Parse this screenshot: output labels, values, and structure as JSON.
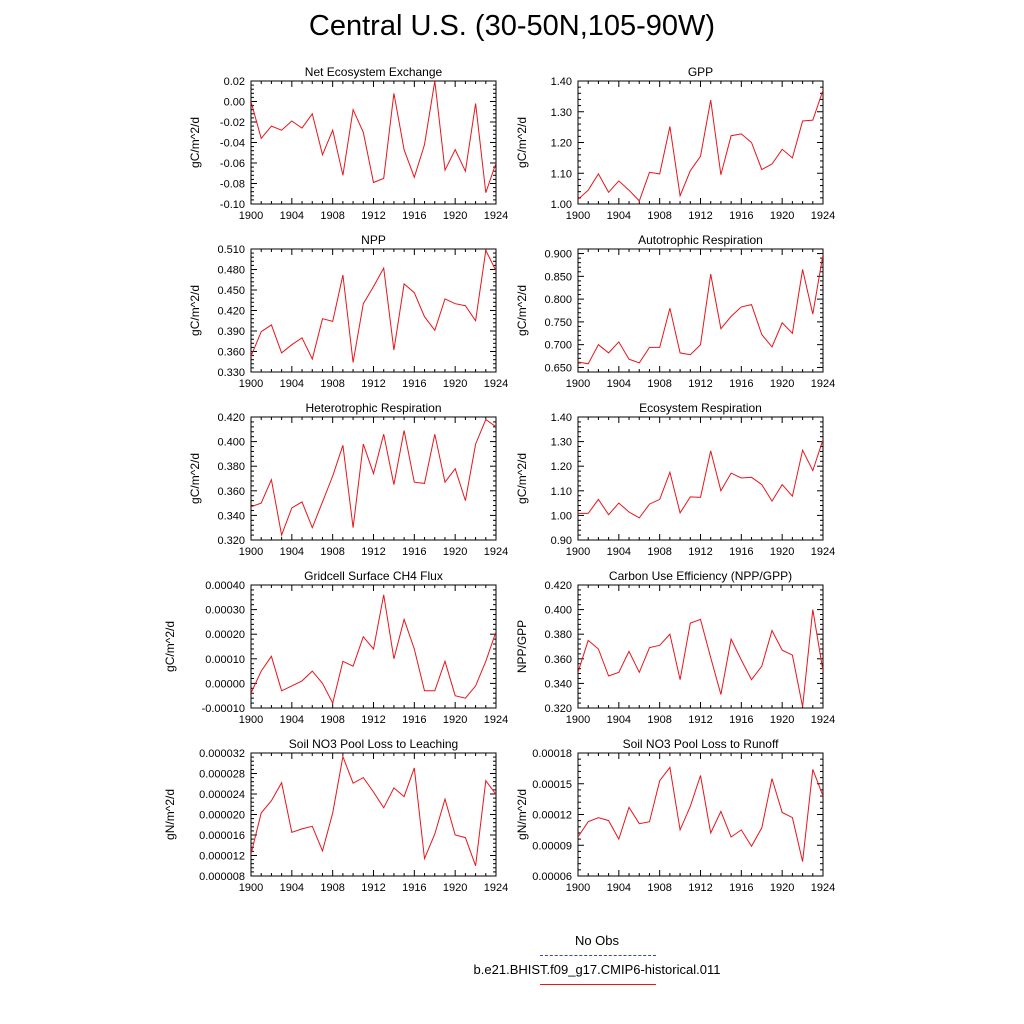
{
  "figure": {
    "title": "Central U.S. (30-50N,105-90W)"
  },
  "colors": {
    "model_line": "#e8151b",
    "obs_line": "#3344cc",
    "axis": "#000000"
  },
  "legend": {
    "obs_label": "No Obs",
    "model_label": "b.e21.BHIST.f09_g17.CMIP6-historical.011"
  },
  "chart_data": [
    {
      "type": "line",
      "title": "Net Ecosystem Exchange",
      "ylabel": "gC/m^2/d",
      "xlim": [
        1900,
        1924
      ],
      "ylim": [
        -0.1,
        0.02
      ],
      "xticks": [
        "1900",
        "1904",
        "1908",
        "1912",
        "1916",
        "1920",
        "1924"
      ],
      "yticks": [
        "-0.10",
        "-0.08",
        "-0.06",
        "-0.04",
        "-0.02",
        "0.00",
        "0.02"
      ],
      "x": [
        1900,
        1901,
        1902,
        1903,
        1904,
        1905,
        1906,
        1907,
        1908,
        1909,
        1910,
        1911,
        1912,
        1913,
        1914,
        1915,
        1916,
        1917,
        1918,
        1919,
        1920,
        1921,
        1922,
        1923,
        1924
      ],
      "values": [
        0.0,
        -0.036,
        -0.024,
        -0.028,
        -0.019,
        -0.026,
        -0.012,
        -0.052,
        -0.028,
        -0.072,
        -0.008,
        -0.03,
        -0.079,
        -0.075,
        0.008,
        -0.047,
        -0.074,
        -0.042,
        0.02,
        -0.067,
        -0.047,
        -0.068,
        -0.002,
        -0.089,
        -0.06
      ]
    },
    {
      "type": "line",
      "title": "GPP",
      "ylabel": "gC/m^2/d",
      "xlim": [
        1900,
        1924
      ],
      "ylim": [
        1.0,
        1.4
      ],
      "xticks": [
        "1900",
        "1904",
        "1908",
        "1912",
        "1916",
        "1920",
        "1924"
      ],
      "yticks": [
        "1.00",
        "1.10",
        "1.20",
        "1.30",
        "1.40"
      ],
      "x": [
        1900,
        1901,
        1902,
        1903,
        1904,
        1905,
        1906,
        1907,
        1908,
        1909,
        1910,
        1911,
        1912,
        1913,
        1914,
        1915,
        1916,
        1917,
        1918,
        1919,
        1920,
        1921,
        1922,
        1923,
        1924
      ],
      "values": [
        1.015,
        1.045,
        1.098,
        1.038,
        1.075,
        1.045,
        1.01,
        1.103,
        1.098,
        1.252,
        1.027,
        1.108,
        1.155,
        1.338,
        1.095,
        1.222,
        1.228,
        1.2,
        1.112,
        1.13,
        1.178,
        1.15,
        1.27,
        1.273,
        1.37
      ]
    },
    {
      "type": "line",
      "title": "NPP",
      "ylabel": "gC/m^2/d",
      "xlim": [
        1900,
        1924
      ],
      "ylim": [
        0.33,
        0.51
      ],
      "xticks": [
        "1900",
        "1904",
        "1908",
        "1912",
        "1916",
        "1920",
        "1924"
      ],
      "yticks": [
        "0.330",
        "0.360",
        "0.390",
        "0.420",
        "0.450",
        "0.480",
        "0.510"
      ],
      "x": [
        1900,
        1901,
        1902,
        1903,
        1904,
        1905,
        1906,
        1907,
        1908,
        1909,
        1910,
        1911,
        1912,
        1913,
        1914,
        1915,
        1916,
        1917,
        1918,
        1919,
        1920,
        1921,
        1922,
        1923,
        1924
      ],
      "values": [
        0.353,
        0.389,
        0.399,
        0.358,
        0.37,
        0.38,
        0.349,
        0.408,
        0.404,
        0.472,
        0.344,
        0.43,
        0.455,
        0.482,
        0.362,
        0.459,
        0.446,
        0.411,
        0.391,
        0.437,
        0.43,
        0.427,
        0.405,
        0.508,
        0.478
      ]
    },
    {
      "type": "line",
      "title": "Autotrophic Respiration",
      "ylabel": "gC/m^2/d",
      "xlim": [
        1900,
        1924
      ],
      "ylim": [
        0.64,
        0.91
      ],
      "xticks": [
        "1900",
        "1904",
        "1908",
        "1912",
        "1916",
        "1920",
        "1924"
      ],
      "yticks": [
        "0.650",
        "0.700",
        "0.750",
        "0.800",
        "0.850",
        "0.900"
      ],
      "x": [
        1900,
        1901,
        1902,
        1903,
        1904,
        1905,
        1906,
        1907,
        1908,
        1909,
        1910,
        1911,
        1912,
        1913,
        1914,
        1915,
        1916,
        1917,
        1918,
        1919,
        1920,
        1921,
        1922,
        1923,
        1924
      ],
      "values": [
        0.662,
        0.658,
        0.7,
        0.682,
        0.706,
        0.668,
        0.66,
        0.694,
        0.694,
        0.78,
        0.682,
        0.678,
        0.7,
        0.855,
        0.735,
        0.762,
        0.783,
        0.788,
        0.722,
        0.695,
        0.748,
        0.725,
        0.865,
        0.767,
        0.898
      ]
    },
    {
      "type": "line",
      "title": "Heterotrophic Respiration",
      "ylabel": "gC/m^2/d",
      "xlim": [
        1900,
        1924
      ],
      "ylim": [
        0.32,
        0.42
      ],
      "xticks": [
        "1900",
        "1904",
        "1908",
        "1912",
        "1916",
        "1920",
        "1924"
      ],
      "yticks": [
        "0.320",
        "0.340",
        "0.360",
        "0.380",
        "0.400",
        "0.420"
      ],
      "x": [
        1900,
        1901,
        1902,
        1903,
        1904,
        1905,
        1906,
        1907,
        1908,
        1909,
        1910,
        1911,
        1912,
        1913,
        1914,
        1915,
        1916,
        1917,
        1918,
        1919,
        1920,
        1921,
        1922,
        1923,
        1924
      ],
      "values": [
        0.347,
        0.35,
        0.369,
        0.324,
        0.346,
        0.351,
        0.33,
        0.351,
        0.372,
        0.397,
        0.33,
        0.398,
        0.374,
        0.406,
        0.365,
        0.409,
        0.367,
        0.366,
        0.406,
        0.367,
        0.378,
        0.352,
        0.398,
        0.418,
        0.412
      ]
    },
    {
      "type": "line",
      "title": "Ecosystem Respiration",
      "ylabel": "gC/m^2/d",
      "xlim": [
        1900,
        1924
      ],
      "ylim": [
        0.9,
        1.4
      ],
      "xticks": [
        "1900",
        "1904",
        "1908",
        "1912",
        "1916",
        "1920",
        "1924"
      ],
      "yticks": [
        "0.90",
        "1.00",
        "1.10",
        "1.20",
        "1.30",
        "1.40"
      ],
      "x": [
        1900,
        1901,
        1902,
        1903,
        1904,
        1905,
        1906,
        1907,
        1908,
        1909,
        1910,
        1911,
        1912,
        1913,
        1914,
        1915,
        1916,
        1917,
        1918,
        1919,
        1920,
        1921,
        1922,
        1923,
        1924
      ],
      "values": [
        1.008,
        1.008,
        1.065,
        1.003,
        1.05,
        1.014,
        0.99,
        1.046,
        1.065,
        1.175,
        1.01,
        1.075,
        1.073,
        1.262,
        1.1,
        1.172,
        1.152,
        1.155,
        1.125,
        1.058,
        1.125,
        1.078,
        1.265,
        1.182,
        1.308
      ]
    },
    {
      "type": "line",
      "title": "Gridcell Surface CH4 Flux",
      "ylabel": "gC/m^2/d",
      "xlim": [
        1900,
        1924
      ],
      "ylim": [
        -0.0001,
        0.0004
      ],
      "xticks": [
        "1900",
        "1904",
        "1908",
        "1912",
        "1916",
        "1920",
        "1924"
      ],
      "yticks": [
        "-0.00010",
        "0.00000",
        "0.00010",
        "0.00020",
        "0.00030",
        "0.00040"
      ],
      "x": [
        1900,
        1901,
        1902,
        1903,
        1904,
        1905,
        1906,
        1907,
        1908,
        1909,
        1910,
        1911,
        1912,
        1913,
        1914,
        1915,
        1916,
        1917,
        1918,
        1919,
        1920,
        1921,
        1922,
        1923,
        1924
      ],
      "values": [
        -4e-05,
        5e-05,
        0.00011,
        -3e-05,
        -1e-05,
        1e-05,
        5e-05,
        0.0,
        -8e-05,
        9e-05,
        7e-05,
        0.00019,
        0.00014,
        0.00036,
        0.0001,
        0.00026,
        0.00014,
        -3e-05,
        -3e-05,
        9e-05,
        -5e-05,
        -6e-05,
        -1e-05,
        9e-05,
        0.00021
      ]
    },
    {
      "type": "line",
      "title": "Carbon Use Efficiency (NPP/GPP)",
      "ylabel": "NPP/GPP",
      "xlim": [
        1900,
        1924
      ],
      "ylim": [
        0.32,
        0.42
      ],
      "xticks": [
        "1900",
        "1904",
        "1908",
        "1912",
        "1916",
        "1920",
        "1924"
      ],
      "yticks": [
        "0.320",
        "0.340",
        "0.360",
        "0.380",
        "0.400",
        "0.420"
      ],
      "x": [
        1900,
        1901,
        1902,
        1903,
        1904,
        1905,
        1906,
        1907,
        1908,
        1909,
        1910,
        1911,
        1912,
        1913,
        1914,
        1915,
        1916,
        1917,
        1918,
        1919,
        1920,
        1921,
        1922,
        1923,
        1924
      ],
      "values": [
        0.349,
        0.375,
        0.368,
        0.346,
        0.349,
        0.366,
        0.349,
        0.369,
        0.371,
        0.38,
        0.343,
        0.389,
        0.392,
        0.361,
        0.331,
        0.376,
        0.359,
        0.343,
        0.354,
        0.383,
        0.367,
        0.363,
        0.321,
        0.4,
        0.35
      ]
    },
    {
      "type": "line",
      "title": "Soil NO3 Pool Loss to Leaching",
      "ylabel": "gN/m^2/d",
      "xlim": [
        1900,
        1924
      ],
      "ylim": [
        8e-06,
        3.2e-05
      ],
      "xticks": [
        "1900",
        "1904",
        "1908",
        "1912",
        "1916",
        "1920",
        "1924"
      ],
      "yticks": [
        "0.000008",
        "0.000012",
        "0.000016",
        "0.000020",
        "0.000024",
        "0.000028",
        "0.000032"
      ],
      "x": [
        1900,
        1901,
        1902,
        1903,
        1904,
        1905,
        1906,
        1907,
        1908,
        1909,
        1910,
        1911,
        1912,
        1913,
        1914,
        1915,
        1916,
        1917,
        1918,
        1919,
        1920,
        1921,
        1922,
        1923,
        1924
      ],
      "values": [
        1.23e-05,
        2.03e-05,
        2.27e-05,
        2.62e-05,
        1.65e-05,
        1.72e-05,
        1.77e-05,
        1.29e-05,
        2.03e-05,
        3.13e-05,
        2.61e-05,
        2.72e-05,
        2.44e-05,
        2.13e-05,
        2.52e-05,
        2.35e-05,
        2.91e-05,
        1.14e-05,
        1.62e-05,
        2.3e-05,
        1.6e-05,
        1.55e-05,
        1e-05,
        2.66e-05,
        2.39e-05
      ]
    },
    {
      "type": "line",
      "title": "Soil NO3 Pool Loss to Runoff",
      "ylabel": "gN/m^2/d",
      "xlim": [
        1900,
        1924
      ],
      "ylim": [
        6e-05,
        0.00018
      ],
      "xticks": [
        "1900",
        "1904",
        "1908",
        "1912",
        "1916",
        "1920",
        "1924"
      ],
      "yticks": [
        "0.00006",
        "0.00009",
        "0.00012",
        "0.00015",
        "0.00018"
      ],
      "x": [
        1900,
        1901,
        1902,
        1903,
        1904,
        1905,
        1906,
        1907,
        1908,
        1909,
        1910,
        1911,
        1912,
        1913,
        1914,
        1915,
        1916,
        1917,
        1918,
        1919,
        1920,
        1921,
        1922,
        1923,
        1924
      ],
      "values": [
        9.8e-05,
        0.000113,
        0.000117,
        0.000114,
        9.6e-05,
        0.000127,
        0.000111,
        0.000113,
        0.000153,
        0.000166,
        0.000105,
        0.000128,
        0.000158,
        0.000102,
        0.000123,
        9.8e-05,
        0.000105,
        8.9e-05,
        0.000107,
        0.000155,
        0.000122,
        0.000117,
        7.4e-05,
        0.000164,
        0.000138
      ]
    }
  ]
}
